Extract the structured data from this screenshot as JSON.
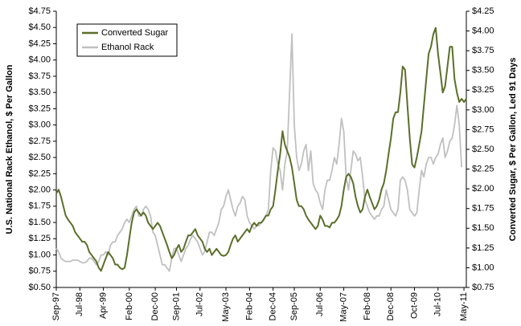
{
  "chart_data": {
    "type": "line",
    "y_label": "U.S. National Rack Ethanol, $ Per Gallon",
    "y2_label": "Converted Sugar, $ Per Gallon, Led 91 Days",
    "categories": [
      "Sep-97",
      null,
      null,
      null,
      null,
      null,
      null,
      null,
      null,
      null,
      "Jul-98",
      null,
      null,
      null,
      null,
      null,
      null,
      null,
      null,
      null,
      "Apr-99",
      null,
      null,
      null,
      null,
      null,
      null,
      null,
      null,
      null,
      null,
      "Feb-00",
      null,
      null,
      null,
      null,
      null,
      null,
      null,
      null,
      null,
      null,
      "Dec-00",
      null,
      null,
      null,
      null,
      null,
      null,
      null,
      null,
      "Sep-01",
      null,
      null,
      null,
      null,
      null,
      null,
      null,
      null,
      null,
      "Jul-02",
      null,
      null,
      null,
      null,
      null,
      null,
      null,
      null,
      null,
      null,
      "May-03",
      null,
      null,
      null,
      null,
      null,
      null,
      null,
      null,
      null,
      "Feb-04",
      null,
      null,
      null,
      null,
      null,
      null,
      null,
      null,
      null,
      "Dec-04",
      null,
      null,
      null,
      null,
      null,
      null,
      null,
      null,
      "Sep-05",
      null,
      null,
      null,
      null,
      null,
      null,
      null,
      null,
      null,
      null,
      "Jul-06",
      null,
      null,
      null,
      null,
      null,
      null,
      null,
      null,
      null,
      "May-07",
      null,
      null,
      null,
      null,
      null,
      null,
      null,
      null,
      null,
      "Feb-08",
      null,
      null,
      null,
      null,
      null,
      null,
      null,
      null,
      null,
      "Dec-08",
      null,
      null,
      null,
      null,
      null,
      null,
      null,
      null,
      null,
      "Oct-09",
      null,
      null,
      null,
      null,
      null,
      null,
      null,
      null,
      null,
      "Jul-10",
      null,
      null,
      null,
      null,
      null,
      null,
      null,
      null,
      null,
      null,
      "May-11",
      null
    ],
    "series": [
      {
        "name": "Converted Sugar",
        "color": "#5b6f2a",
        "axis": "y2",
        "values": [
          1.94,
          1.99,
          1.9,
          1.78,
          1.66,
          1.61,
          1.57,
          1.53,
          1.45,
          1.41,
          1.37,
          1.33,
          1.33,
          1.29,
          1.2,
          1.16,
          1.12,
          1.08,
          1.0,
          0.96,
          1.04,
          1.12,
          1.2,
          1.16,
          1.12,
          1.04,
          1.04,
          1.0,
          0.98,
          1.0,
          1.16,
          1.37,
          1.57,
          1.7,
          1.74,
          1.7,
          1.66,
          1.7,
          1.66,
          1.57,
          1.53,
          1.49,
          1.53,
          1.57,
          1.53,
          1.45,
          1.37,
          1.29,
          1.2,
          1.12,
          1.16,
          1.24,
          1.29,
          1.2,
          1.24,
          1.33,
          1.41,
          1.41,
          1.45,
          1.49,
          1.41,
          1.37,
          1.33,
          1.24,
          1.2,
          1.24,
          1.16,
          1.2,
          1.24,
          1.2,
          1.16,
          1.15,
          1.16,
          1.2,
          1.29,
          1.37,
          1.41,
          1.33,
          1.37,
          1.41,
          1.45,
          1.49,
          1.45,
          1.53,
          1.57,
          1.53,
          1.57,
          1.57,
          1.61,
          1.66,
          1.66,
          1.74,
          1.78,
          1.99,
          2.23,
          2.44,
          2.73,
          2.56,
          2.48,
          2.4,
          2.27,
          2.07,
          1.86,
          1.78,
          1.78,
          1.74,
          1.66,
          1.61,
          1.57,
          1.53,
          1.49,
          1.53,
          1.66,
          1.61,
          1.53,
          1.53,
          1.51,
          1.57,
          1.57,
          1.61,
          1.66,
          1.78,
          1.99,
          2.15,
          2.19,
          2.15,
          2.07,
          1.9,
          1.78,
          1.7,
          1.74,
          1.9,
          1.99,
          1.9,
          1.82,
          1.74,
          1.78,
          1.86,
          1.99,
          2.07,
          2.23,
          2.44,
          2.64,
          2.89,
          2.97,
          2.97,
          3.22,
          3.55,
          3.51,
          3.06,
          2.64,
          2.31,
          2.27,
          2.4,
          2.56,
          2.73,
          3.06,
          3.39,
          3.71,
          3.8,
          3.96,
          4.04,
          3.71,
          3.47,
          3.22,
          3.3,
          3.55,
          3.8,
          3.8,
          3.39,
          3.22,
          3.1,
          3.14,
          3.1,
          3.14
        ]
      },
      {
        "name": "Ethanol Rack",
        "color": "#c0c0c0",
        "values": [
          1.1,
          1.05,
          0.95,
          0.92,
          0.9,
          0.9,
          0.9,
          0.92,
          0.92,
          0.92,
          0.9,
          0.88,
          0.88,
          0.9,
          0.95,
          0.95,
          0.9,
          0.85,
          0.9,
          1.0,
          1.0,
          1.05,
          1.0,
          1.15,
          1.2,
          1.2,
          1.3,
          1.35,
          1.4,
          1.5,
          1.55,
          1.5,
          1.6,
          1.7,
          1.75,
          1.6,
          1.6,
          1.7,
          1.75,
          1.7,
          1.6,
          1.35,
          1.3,
          1.15,
          1.0,
          0.85,
          0.85,
          0.8,
          0.75,
          0.95,
          1.1,
          1.1,
          1.0,
          0.9,
          1.0,
          1.1,
          1.15,
          1.25,
          1.3,
          1.25,
          1.2,
          1.1,
          1.0,
          1.05,
          1.2,
          1.35,
          1.35,
          1.3,
          1.4,
          1.5,
          1.7,
          1.75,
          1.9,
          2.0,
          1.85,
          1.7,
          1.6,
          1.75,
          1.8,
          1.9,
          1.85,
          1.6,
          1.5,
          1.45,
          1.4,
          1.45,
          1.45,
          1.5,
          1.55,
          1.6,
          1.7,
          2.3,
          2.65,
          2.6,
          2.4,
          2.3,
          2.0,
          2.4,
          2.6,
          3.5,
          4.4,
          3.0,
          2.5,
          2.3,
          2.4,
          2.6,
          2.7,
          2.3,
          2.6,
          2.1,
          2.0,
          1.95,
          1.8,
          1.7,
          2.0,
          2.15,
          2.15,
          2.3,
          2.5,
          2.4,
          2.7,
          3.1,
          2.9,
          2.2,
          2.0,
          2.3,
          2.6,
          2.55,
          2.45,
          2.5,
          2.2,
          1.85,
          1.75,
          1.65,
          1.6,
          1.55,
          1.6,
          1.6,
          1.7,
          1.75,
          2.0,
          1.85,
          1.7,
          1.65,
          1.6,
          1.7,
          2.15,
          2.2,
          2.15,
          2.0,
          1.7,
          1.65,
          1.6,
          1.65,
          2.0,
          2.3,
          2.2,
          2.4,
          2.5,
          2.5,
          2.4,
          2.5,
          2.55,
          2.7,
          2.8,
          2.5,
          2.6,
          2.75,
          2.8,
          3.0,
          3.3,
          3.0,
          2.35,
          null,
          null
        ]
      }
    ],
    "ylim": [
      0.5,
      4.75
    ],
    "yticks": [
      {
        "value": 0.5,
        "label": "$0.50"
      },
      {
        "value": 0.75,
        "label": "$0.75"
      },
      {
        "value": 1,
        "label": "$1.00"
      },
      {
        "value": 1.25,
        "label": "$1.25"
      },
      {
        "value": 1.5,
        "label": "$1.50"
      },
      {
        "value": 1.75,
        "label": "$1.75"
      },
      {
        "value": 2,
        "label": "$2.00"
      },
      {
        "value": 2.25,
        "label": "$2.25"
      },
      {
        "value": 2.5,
        "label": "$2.50"
      },
      {
        "value": 2.75,
        "label": "$2.75"
      },
      {
        "value": 3,
        "label": "$3.00"
      },
      {
        "value": 3.25,
        "label": "$3.25"
      },
      {
        "value": 3.5,
        "label": "$3.50"
      },
      {
        "value": 3.75,
        "label": "$3.75"
      },
      {
        "value": 4,
        "label": "$4.00"
      },
      {
        "value": 4.25,
        "label": "$4.25"
      },
      {
        "value": 4.5,
        "label": "$4.50"
      },
      {
        "value": 4.75,
        "label": "$4.75"
      }
    ],
    "y2lim": [
      0.75,
      4.25
    ],
    "y2ticks": [
      {
        "value": 0.75,
        "label": "$0.75"
      },
      {
        "value": 1,
        "label": "$1.00"
      },
      {
        "value": 1.25,
        "label": "$1.25"
      },
      {
        "value": 1.5,
        "label": "$1.50"
      },
      {
        "value": 1.75,
        "label": "$1.75"
      },
      {
        "value": 2,
        "label": "$2.00"
      },
      {
        "value": 2.25,
        "label": "$2.25"
      },
      {
        "value": 2.5,
        "label": "$2.50"
      },
      {
        "value": 2.75,
        "label": "$2.75"
      },
      {
        "value": 3,
        "label": "$3.00"
      },
      {
        "value": 3.25,
        "label": "$3.25"
      },
      {
        "value": 3.5,
        "label": "$3.50"
      },
      {
        "value": 3.75,
        "label": "$3.75"
      },
      {
        "value": 4,
        "label": "$4.00"
      },
      {
        "value": 4.25,
        "label": "$4.25"
      }
    ],
    "grid": false,
    "legend": "upper left"
  }
}
